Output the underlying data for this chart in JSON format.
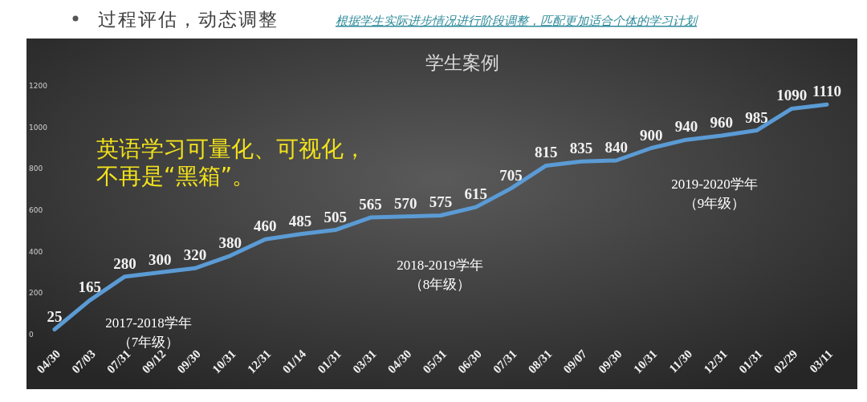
{
  "chart_data": {
    "type": "line",
    "title": "学生案例",
    "categories": [
      "04/30",
      "07/03",
      "07/31",
      "09/12",
      "09/30",
      "10/31",
      "12/31",
      "01/14",
      "01/31",
      "03/31",
      "04/30",
      "05/31",
      "06/30",
      "07/31",
      "08/31",
      "09/07",
      "09/30",
      "10/31",
      "11/30",
      "12/31",
      "01/31",
      "02/29",
      "03/11"
    ],
    "series": [
      {
        "color": "#5b9bd5",
        "values": [
          25,
          165,
          280,
          300,
          320,
          380,
          460,
          485,
          505,
          565,
          570,
          575,
          615,
          705,
          815,
          835,
          840,
          900,
          940,
          960,
          985,
          1090,
          1110
        ]
      }
    ],
    "ylim": [
      0,
      1200
    ],
    "yticks": [
      0,
      200,
      400,
      600,
      800,
      1000,
      1200
    ],
    "data_labels": true,
    "marker": "none",
    "line_style": "solid",
    "grid": false,
    "annotations": [
      "过程评估，动态调整",
      "根据学生实际进步情况进行阶段调整，匹配更加适合个体的学习计划",
      "英语学习可量化、可视化，",
      "不再是“黑箱”。",
      "2017-2018学年",
      "（7年级）",
      "2018-2019学年",
      "（8年级）",
      "2019-2020学年",
      "（9年级）"
    ]
  }
}
